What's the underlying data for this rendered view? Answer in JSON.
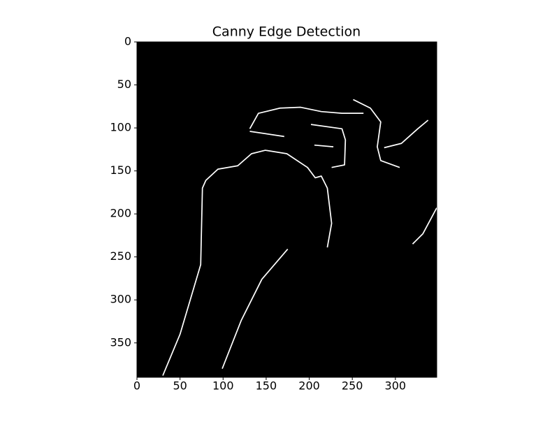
{
  "chart_data": {
    "type": "image",
    "title": "Canny Edge Detection",
    "xlim": [
      0,
      348
    ],
    "ylim": [
      390,
      0
    ],
    "xticks": [
      0,
      50,
      100,
      150,
      200,
      250,
      300
    ],
    "yticks": [
      0,
      50,
      100,
      150,
      200,
      250,
      300,
      350
    ]
  }
}
